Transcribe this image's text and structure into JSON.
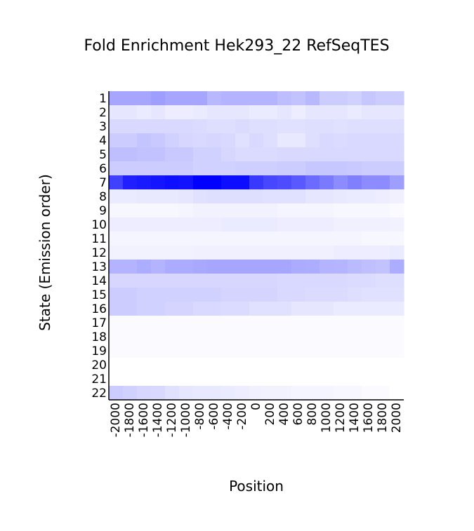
{
  "chart_data": {
    "type": "heatmap",
    "title": "Fold Enrichment Hek293_22 RefSeqTES",
    "xlabel": "Position",
    "ylabel": "State (Emission order)",
    "x": [
      "-2000",
      "-1800",
      "-1600",
      "-1400",
      "-1200",
      "-1000",
      "-800",
      "-600",
      "-400",
      "-200",
      "0",
      "200",
      "400",
      "600",
      "800",
      "1000",
      "1200",
      "1400",
      "1600",
      "1800",
      "2000"
    ],
    "y": [
      "1",
      "2",
      "3",
      "4",
      "5",
      "6",
      "7",
      "8",
      "9",
      "10",
      "11",
      "12",
      "13",
      "14",
      "15",
      "16",
      "17",
      "18",
      "19",
      "20",
      "21",
      "22"
    ],
    "color_low": "#ffffff",
    "color_high": "#0000ff",
    "values": [
      [
        0.35,
        0.35,
        0.35,
        0.38,
        0.35,
        0.35,
        0.35,
        0.28,
        0.3,
        0.3,
        0.3,
        0.3,
        0.26,
        0.24,
        0.28,
        0.2,
        0.2,
        0.18,
        0.22,
        0.2,
        0.2
      ],
      [
        0.1,
        0.1,
        0.08,
        0.1,
        0.07,
        0.07,
        0.08,
        0.1,
        0.1,
        0.1,
        0.08,
        0.08,
        0.1,
        0.07,
        0.1,
        0.1,
        0.1,
        0.08,
        0.1,
        0.1,
        0.1
      ],
      [
        0.15,
        0.15,
        0.15,
        0.15,
        0.15,
        0.15,
        0.14,
        0.13,
        0.13,
        0.14,
        0.13,
        0.13,
        0.12,
        0.12,
        0.13,
        0.13,
        0.12,
        0.13,
        0.13,
        0.13,
        0.13
      ],
      [
        0.2,
        0.2,
        0.23,
        0.21,
        0.18,
        0.16,
        0.15,
        0.16,
        0.15,
        0.12,
        0.15,
        0.13,
        0.09,
        0.09,
        0.13,
        0.15,
        0.14,
        0.15,
        0.15,
        0.15,
        0.15
      ],
      [
        0.25,
        0.25,
        0.24,
        0.24,
        0.21,
        0.21,
        0.18,
        0.18,
        0.16,
        0.14,
        0.14,
        0.14,
        0.15,
        0.15,
        0.15,
        0.15,
        0.15,
        0.15,
        0.15,
        0.15,
        0.15
      ],
      [
        0.2,
        0.2,
        0.2,
        0.2,
        0.2,
        0.2,
        0.18,
        0.18,
        0.18,
        0.19,
        0.19,
        0.19,
        0.2,
        0.2,
        0.22,
        0.22,
        0.22,
        0.21,
        0.2,
        0.2,
        0.2
      ],
      [
        0.75,
        0.88,
        0.9,
        0.92,
        0.94,
        0.93,
        1.0,
        1.0,
        0.95,
        0.95,
        0.78,
        0.72,
        0.7,
        0.65,
        0.58,
        0.52,
        0.45,
        0.5,
        0.45,
        0.45,
        0.38
      ],
      [
        0.08,
        0.08,
        0.09,
        0.09,
        0.09,
        0.1,
        0.12,
        0.13,
        0.13,
        0.13,
        0.13,
        0.12,
        0.12,
        0.12,
        0.1,
        0.1,
        0.09,
        0.08,
        0.08,
        0.07,
        0.06
      ],
      [
        0.03,
        0.03,
        0.03,
        0.03,
        0.03,
        0.04,
        0.05,
        0.05,
        0.05,
        0.05,
        0.05,
        0.05,
        0.04,
        0.04,
        0.04,
        0.04,
        0.03,
        0.03,
        0.03,
        0.03,
        0.02
      ],
      [
        0.07,
        0.07,
        0.07,
        0.07,
        0.07,
        0.07,
        0.07,
        0.07,
        0.08,
        0.08,
        0.08,
        0.08,
        0.07,
        0.07,
        0.07,
        0.07,
        0.06,
        0.06,
        0.06,
        0.06,
        0.05
      ],
      [
        0.04,
        0.04,
        0.04,
        0.04,
        0.04,
        0.04,
        0.04,
        0.04,
        0.04,
        0.04,
        0.04,
        0.04,
        0.04,
        0.04,
        0.04,
        0.04,
        0.04,
        0.04,
        0.03,
        0.03,
        0.03
      ],
      [
        0.05,
        0.05,
        0.05,
        0.05,
        0.05,
        0.05,
        0.06,
        0.06,
        0.06,
        0.06,
        0.06,
        0.06,
        0.06,
        0.06,
        0.06,
        0.06,
        0.07,
        0.07,
        0.07,
        0.07,
        0.08
      ],
      [
        0.3,
        0.3,
        0.32,
        0.3,
        0.33,
        0.33,
        0.34,
        0.35,
        0.35,
        0.35,
        0.35,
        0.35,
        0.35,
        0.33,
        0.32,
        0.3,
        0.29,
        0.27,
        0.25,
        0.24,
        0.32
      ],
      [
        0.16,
        0.16,
        0.16,
        0.16,
        0.16,
        0.16,
        0.16,
        0.16,
        0.16,
        0.16,
        0.16,
        0.16,
        0.15,
        0.15,
        0.15,
        0.15,
        0.15,
        0.14,
        0.14,
        0.13,
        0.13
      ],
      [
        0.2,
        0.2,
        0.18,
        0.18,
        0.18,
        0.18,
        0.18,
        0.18,
        0.17,
        0.17,
        0.17,
        0.17,
        0.15,
        0.15,
        0.14,
        0.14,
        0.14,
        0.13,
        0.12,
        0.12,
        0.12
      ],
      [
        0.2,
        0.2,
        0.18,
        0.18,
        0.17,
        0.17,
        0.15,
        0.15,
        0.14,
        0.14,
        0.12,
        0.12,
        0.12,
        0.1,
        0.1,
        0.1,
        0.08,
        0.08,
        0.08,
        0.08,
        0.08
      ],
      [
        0.02,
        0.02,
        0.02,
        0.02,
        0.02,
        0.02,
        0.02,
        0.02,
        0.02,
        0.02,
        0.02,
        0.02,
        0.02,
        0.02,
        0.02,
        0.02,
        0.02,
        0.02,
        0.02,
        0.02,
        0.02
      ],
      [
        0.02,
        0.02,
        0.02,
        0.02,
        0.02,
        0.02,
        0.02,
        0.02,
        0.02,
        0.02,
        0.02,
        0.02,
        0.02,
        0.02,
        0.02,
        0.02,
        0.02,
        0.02,
        0.02,
        0.02,
        0.02
      ],
      [
        0.02,
        0.02,
        0.02,
        0.02,
        0.02,
        0.02,
        0.02,
        0.02,
        0.02,
        0.02,
        0.02,
        0.02,
        0.02,
        0.02,
        0.02,
        0.02,
        0.02,
        0.02,
        0.02,
        0.02,
        0.02
      ],
      [
        0.0,
        0.0,
        0.0,
        0.0,
        0.0,
        0.0,
        0.0,
        0.0,
        0.0,
        0.0,
        0.0,
        0.0,
        0.0,
        0.0,
        0.0,
        0.0,
        0.0,
        0.0,
        0.0,
        0.0,
        0.0
      ],
      [
        0.0,
        0.0,
        0.0,
        0.0,
        0.0,
        0.0,
        0.0,
        0.0,
        0.0,
        0.0,
        0.0,
        0.0,
        0.0,
        0.0,
        0.0,
        0.0,
        0.0,
        0.0,
        0.0,
        0.0,
        0.0
      ],
      [
        0.2,
        0.18,
        0.16,
        0.15,
        0.12,
        0.1,
        0.09,
        0.09,
        0.08,
        0.07,
        0.06,
        0.05,
        0.05,
        0.04,
        0.04,
        0.04,
        0.03,
        0.03,
        0.02,
        0.02,
        0.0
      ]
    ],
    "grid": false,
    "legend": "none"
  }
}
